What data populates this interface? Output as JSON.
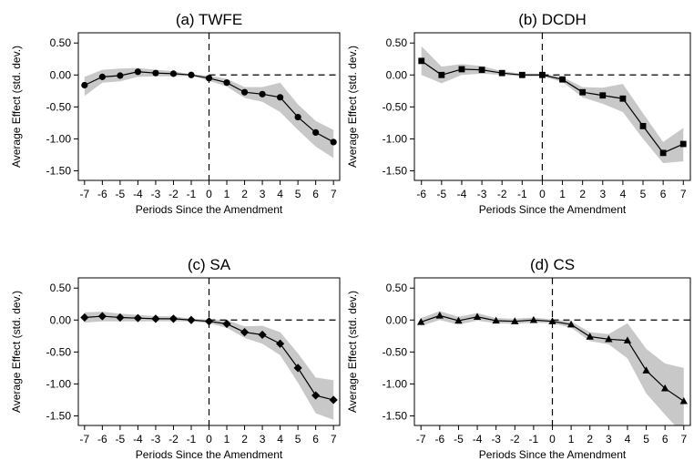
{
  "chart_data": [
    {
      "type": "line",
      "title": "(a) TWFE",
      "xlabel": "Periods Since the Amendment",
      "ylabel": "Average Effect (std. dev.)",
      "x": [
        -7,
        -6,
        -5,
        -4,
        -3,
        -2,
        -1,
        0,
        1,
        2,
        3,
        4,
        5,
        6,
        7
      ],
      "estimate": [
        -0.16,
        -0.03,
        -0.01,
        0.05,
        0.03,
        0.02,
        0.0,
        -0.05,
        -0.12,
        -0.27,
        -0.3,
        -0.35,
        -0.66,
        -0.9,
        -1.05
      ],
      "ci_lower": [
        -0.33,
        -0.12,
        -0.1,
        -0.03,
        -0.02,
        -0.02,
        -0.01,
        -0.09,
        -0.18,
        -0.36,
        -0.42,
        -0.58,
        -0.86,
        -1.12,
        -1.3
      ],
      "ci_upper": [
        -0.03,
        0.08,
        0.1,
        0.11,
        0.08,
        0.06,
        0.01,
        -0.01,
        -0.06,
        -0.19,
        -0.19,
        -0.12,
        -0.46,
        -0.72,
        -0.86
      ],
      "marker": "circle",
      "xlim": [
        -7,
        7
      ],
      "ylim": [
        -1.5,
        0.5
      ],
      "xticks": [
        "-7",
        "-6",
        "-5",
        "-4",
        "-3",
        "-2",
        "-1",
        "0",
        "1",
        "2",
        "3",
        "4",
        "5",
        "6",
        "7"
      ],
      "yticks": [
        "0.50",
        "0.00",
        "-0.50",
        "-1.00",
        "-1.50"
      ],
      "reference_lines": [
        "y = 0 dashed",
        "x = 0 dashed"
      ],
      "grid": false
    },
    {
      "type": "line",
      "title": "(b) DCDH",
      "xlabel": "Periods Since the Amendment",
      "ylabel": "Average Effect (std. dev.)",
      "x": [
        -6,
        -5,
        -4,
        -3,
        -2,
        -1,
        0,
        1,
        2,
        3,
        4,
        5,
        6,
        7
      ],
      "estimate": [
        0.22,
        0.0,
        0.09,
        0.08,
        0.03,
        0.0,
        0.0,
        -0.07,
        -0.27,
        -0.32,
        -0.37,
        -0.8,
        -1.22,
        -1.08
      ],
      "ci_lower": [
        0.0,
        -0.13,
        0.0,
        0.02,
        0.0,
        -0.02,
        -0.02,
        -0.11,
        -0.35,
        -0.45,
        -0.58,
        -1.0,
        -1.38,
        -1.35
      ],
      "ci_upper": [
        0.45,
        0.13,
        0.17,
        0.14,
        0.06,
        0.02,
        0.02,
        -0.03,
        -0.19,
        -0.2,
        -0.14,
        -0.6,
        -1.05,
        -0.83
      ],
      "marker": "square",
      "xlim": [
        -6,
        7
      ],
      "ylim": [
        -1.5,
        0.5
      ],
      "xticks": [
        "-6",
        "-5",
        "-4",
        "-3",
        "-2",
        "-1",
        "0",
        "1",
        "2",
        "3",
        "4",
        "5",
        "6",
        "7"
      ],
      "yticks": [
        "0.50",
        "0.00",
        "-0.50",
        "-1.00",
        "-1.50"
      ],
      "reference_lines": [
        "y = 0 dashed",
        "x = 0 dashed"
      ],
      "grid": false
    },
    {
      "type": "line",
      "title": "(c) SA",
      "xlabel": "Periods Since the Amendment",
      "ylabel": "Average Effect (std. dev.)",
      "x": [
        -7,
        -6,
        -5,
        -4,
        -3,
        -2,
        -1,
        0,
        1,
        2,
        3,
        4,
        5,
        6,
        7
      ],
      "estimate": [
        0.04,
        0.06,
        0.04,
        0.03,
        0.02,
        0.02,
        0.0,
        -0.02,
        -0.06,
        -0.19,
        -0.23,
        -0.37,
        -0.75,
        -1.18,
        -1.25
      ],
      "ci_lower": [
        -0.04,
        -0.02,
        -0.02,
        -0.02,
        -0.02,
        -0.02,
        -0.02,
        -0.05,
        -0.12,
        -0.28,
        -0.37,
        -0.55,
        -0.98,
        -1.46,
        -1.56
      ],
      "ci_upper": [
        0.12,
        0.13,
        0.1,
        0.08,
        0.06,
        0.06,
        0.02,
        0.01,
        0.0,
        -0.1,
        -0.09,
        -0.19,
        -0.52,
        -0.9,
        -0.94
      ],
      "marker": "diamond",
      "xlim": [
        -7,
        7
      ],
      "ylim": [
        -1.5,
        0.5
      ],
      "xticks": [
        "-7",
        "-6",
        "-5",
        "-4",
        "-3",
        "-2",
        "-1",
        "0",
        "1",
        "2",
        "3",
        "4",
        "5",
        "6",
        "7"
      ],
      "yticks": [
        "0.50",
        "0.00",
        "-0.50",
        "-1.00",
        "-1.50"
      ],
      "reference_lines": [
        "y = 0 dashed",
        "x = 0 dashed"
      ],
      "grid": false
    },
    {
      "type": "line",
      "title": "(d) CS",
      "xlabel": "Periods Since the Amendment",
      "ylabel": "Average Effect (std. dev.)",
      "x": [
        -7,
        -6,
        -5,
        -4,
        -3,
        -2,
        -1,
        0,
        1,
        2,
        3,
        4,
        5,
        6,
        7
      ],
      "estimate": [
        -0.03,
        0.07,
        -0.01,
        0.05,
        -0.01,
        -0.02,
        0.0,
        -0.02,
        -0.07,
        -0.26,
        -0.3,
        -0.32,
        -0.79,
        -1.07,
        -1.27
      ],
      "ci_lower": [
        -0.09,
        0.0,
        -0.07,
        -0.01,
        -0.05,
        -0.06,
        -0.04,
        -0.05,
        -0.12,
        -0.33,
        -0.38,
        -0.6,
        -1.15,
        -1.48,
        -1.8
      ],
      "ci_upper": [
        0.03,
        0.14,
        0.05,
        0.11,
        0.03,
        0.02,
        0.04,
        0.01,
        -0.02,
        -0.19,
        -0.22,
        -0.05,
        -0.45,
        -0.68,
        -0.75
      ],
      "marker": "triangle",
      "xlim": [
        -7,
        7
      ],
      "ylim": [
        -1.5,
        0.5
      ],
      "xticks": [
        "-7",
        "-6",
        "-5",
        "-4",
        "-3",
        "-2",
        "-1",
        "0",
        "1",
        "2",
        "3",
        "4",
        "5",
        "6",
        "7"
      ],
      "yticks": [
        "0.50",
        "0.00",
        "-0.50",
        "-1.00",
        "-1.50"
      ],
      "reference_lines": [
        "y = 0 dashed",
        "x = 0 dashed"
      ],
      "grid": false
    }
  ],
  "colors": {
    "band": "#c8c8c8",
    "line": "#000000",
    "background": "#ffffff"
  }
}
